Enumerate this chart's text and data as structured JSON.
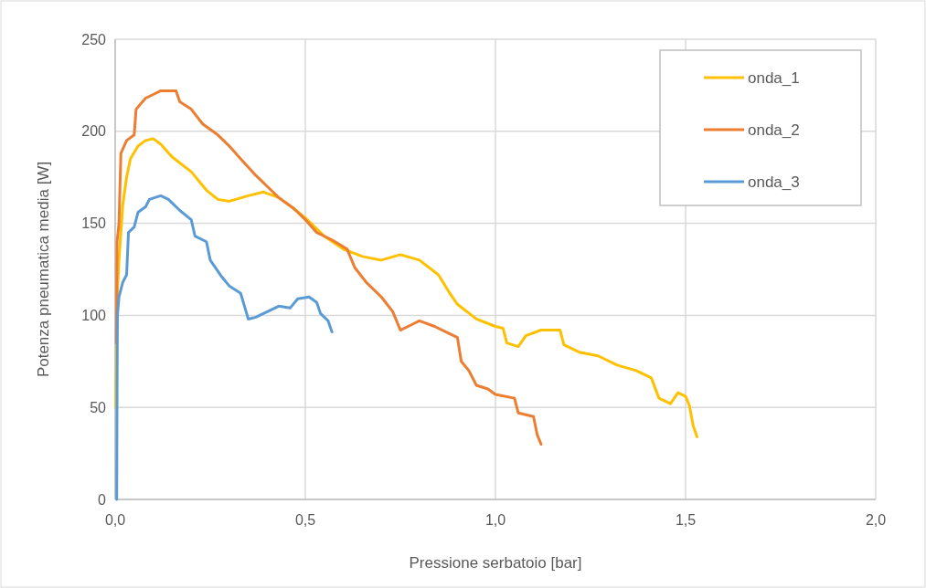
{
  "chart_data": {
    "type": "line",
    "xlabel": "Pressione serbatoio [bar]",
    "ylabel": "Potenza pneumatica media [W]",
    "xlim": [
      0,
      2
    ],
    "ylim": [
      0,
      250
    ],
    "xticks": [
      {
        "value": 0,
        "label": "0,0"
      },
      {
        "value": 0.5,
        "label": "0,5"
      },
      {
        "value": 1,
        "label": "1,0"
      },
      {
        "value": 1.5,
        "label": "1,5"
      },
      {
        "value": 2,
        "label": "2,0"
      }
    ],
    "yticks": [
      0,
      50,
      100,
      150,
      200,
      250
    ],
    "grid": true,
    "legend": "top right",
    "line_style": "solid",
    "series": [
      {
        "name": "onda_1",
        "color": "#ffc000",
        "x": [
          0.002,
          0.005,
          0.01,
          0.02,
          0.03,
          0.04,
          0.06,
          0.08,
          0.1,
          0.12,
          0.15,
          0.2,
          0.24,
          0.27,
          0.3,
          0.35,
          0.39,
          0.43,
          0.47,
          0.5,
          0.55,
          0.6,
          0.65,
          0.7,
          0.75,
          0.8,
          0.85,
          0.88,
          0.9,
          0.95,
          1.0,
          1.02,
          1.03,
          1.06,
          1.08,
          1.12,
          1.17,
          1.18,
          1.22,
          1.27,
          1.32,
          1.37,
          1.41,
          1.43,
          1.46,
          1.48,
          1.5,
          1.51,
          1.52,
          1.53
        ],
        "values": [
          50,
          110,
          130,
          160,
          175,
          185,
          192,
          195,
          196,
          193,
          186,
          178,
          168,
          163,
          162,
          165,
          167,
          164,
          158,
          153,
          143,
          136,
          132,
          130,
          133,
          130,
          122,
          112,
          106,
          98,
          94,
          93,
          85,
          83,
          89,
          92,
          92,
          84,
          80,
          78,
          73,
          70,
          66,
          55,
          52,
          58,
          56,
          51,
          40,
          34
        ]
      },
      {
        "name": "onda_2",
        "color": "#ed7d31",
        "x": [
          0.003,
          0.005,
          0.01,
          0.015,
          0.03,
          0.05,
          0.055,
          0.08,
          0.1,
          0.12,
          0.16,
          0.17,
          0.2,
          0.23,
          0.27,
          0.3,
          0.33,
          0.37,
          0.4,
          0.43,
          0.47,
          0.5,
          0.53,
          0.57,
          0.61,
          0.63,
          0.66,
          0.7,
          0.73,
          0.75,
          0.78,
          0.8,
          0.84,
          0.87,
          0.9,
          0.91,
          0.93,
          0.95,
          0.98,
          1.0,
          1.05,
          1.06,
          1.1,
          1.11,
          1.12
        ],
        "values": [
          85,
          140,
          150,
          188,
          195,
          198,
          212,
          218,
          220,
          222,
          222,
          216,
          212,
          204,
          198,
          192,
          185,
          176,
          170,
          164,
          158,
          152,
          145,
          141,
          136,
          126,
          118,
          110,
          102,
          92,
          95,
          97,
          94,
          91,
          88,
          75,
          70,
          62,
          60,
          57,
          55,
          47,
          45,
          35,
          30
        ]
      },
      {
        "name": "onda_3",
        "color": "#5b9bd5",
        "x": [
          0.004,
          0.005,
          0.006,
          0.01,
          0.02,
          0.03,
          0.035,
          0.05,
          0.06,
          0.08,
          0.09,
          0.12,
          0.14,
          0.17,
          0.2,
          0.21,
          0.24,
          0.25,
          0.28,
          0.3,
          0.33,
          0.35,
          0.37,
          0.41,
          0.43,
          0.46,
          0.48,
          0.51,
          0.53,
          0.54,
          0.56,
          0.57
        ],
        "values": [
          0,
          60,
          100,
          110,
          118,
          122,
          145,
          148,
          156,
          159,
          163,
          165,
          163,
          157,
          152,
          143,
          140,
          130,
          121,
          116,
          112,
          98,
          99,
          103,
          105,
          104,
          109,
          110,
          107,
          101,
          97,
          91
        ]
      }
    ]
  }
}
